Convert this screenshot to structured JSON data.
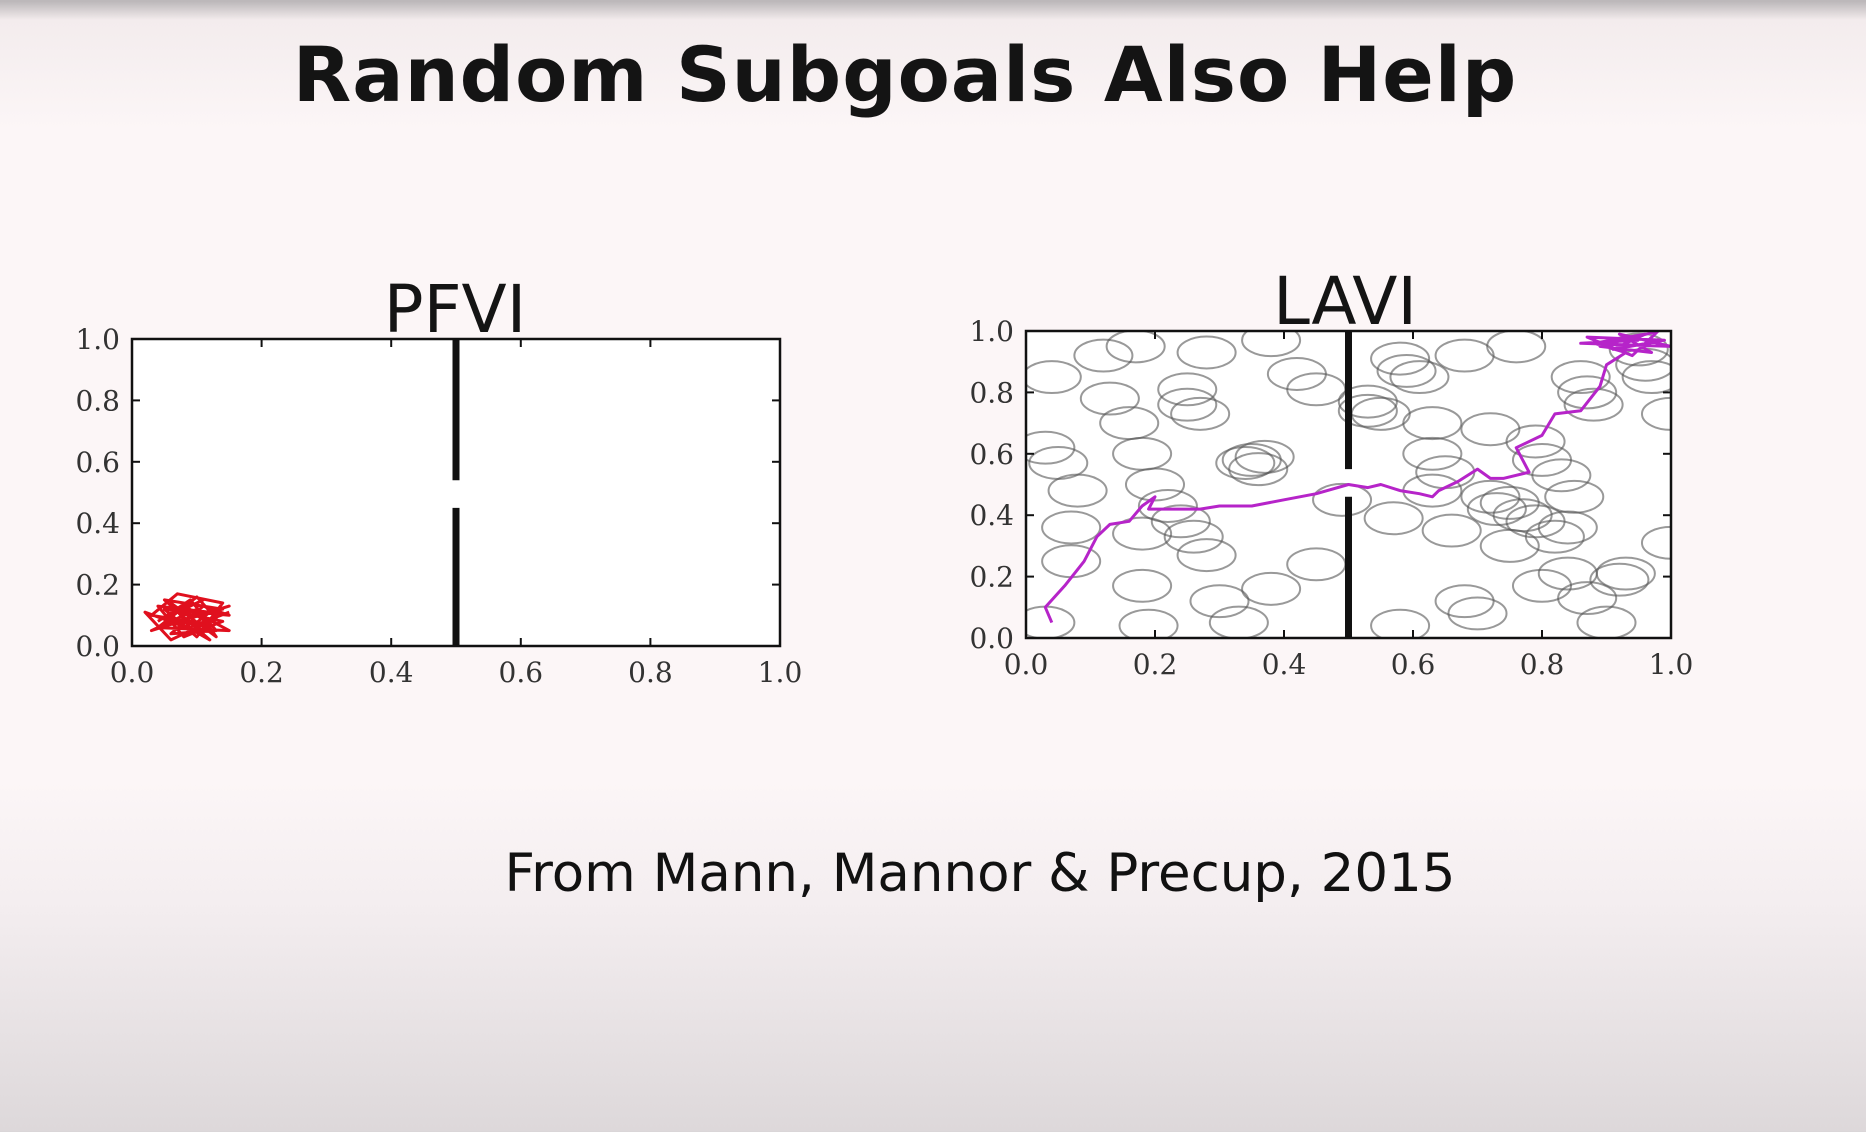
{
  "slide": {
    "title": "Random Subgoals Also Help",
    "citation": "From Mann, Mannor & Precup, 2015"
  },
  "chart_data": [
    {
      "type": "line",
      "title": "PFVI",
      "xlim": [
        0.0,
        1.0
      ],
      "ylim": [
        0.0,
        1.0
      ],
      "x_ticks": [
        "0.0",
        "0.2",
        "0.4",
        "0.6",
        "0.8",
        "1.0"
      ],
      "y_ticks": [
        "0.0",
        "0.2",
        "0.4",
        "0.6",
        "0.8",
        "1.0"
      ],
      "grid": false,
      "walls": [
        {
          "x": 0.5,
          "y_from": 0.0,
          "y_to": 0.45
        },
        {
          "x": 0.5,
          "y_from": 0.54,
          "y_to": 1.0
        }
      ],
      "subgoals": [],
      "trajectory": {
        "color": "#e0101e",
        "points": [
          [
            0.04,
            0.08
          ],
          [
            0.09,
            0.15
          ],
          [
            0.13,
            0.05
          ],
          [
            0.06,
            0.04
          ],
          [
            0.11,
            0.13
          ],
          [
            0.15,
            0.1
          ],
          [
            0.05,
            0.12
          ],
          [
            0.1,
            0.03
          ],
          [
            0.14,
            0.14
          ],
          [
            0.07,
            0.17
          ],
          [
            0.03,
            0.1
          ],
          [
            0.12,
            0.07
          ],
          [
            0.08,
            0.13
          ],
          [
            0.15,
            0.05
          ],
          [
            0.04,
            0.06
          ],
          [
            0.1,
            0.16
          ],
          [
            0.13,
            0.09
          ],
          [
            0.06,
            0.02
          ],
          [
            0.02,
            0.11
          ],
          [
            0.11,
            0.04
          ],
          [
            0.09,
            0.1
          ],
          [
            0.14,
            0.12
          ],
          [
            0.05,
            0.15
          ],
          [
            0.12,
            0.02
          ],
          [
            0.07,
            0.08
          ],
          [
            0.15,
            0.13
          ],
          [
            0.03,
            0.05
          ],
          [
            0.1,
            0.12
          ],
          [
            0.13,
            0.03
          ],
          [
            0.06,
            0.14
          ],
          [
            0.09,
            0.06
          ],
          [
            0.12,
            0.11
          ],
          [
            0.04,
            0.13
          ],
          [
            0.08,
            0.03
          ],
          [
            0.14,
            0.08
          ],
          [
            0.07,
            0.11
          ],
          [
            0.11,
            0.15
          ],
          [
            0.05,
            0.09
          ],
          [
            0.1,
            0.07
          ],
          [
            0.15,
            0.11
          ]
        ]
      }
    },
    {
      "type": "line",
      "title": "LAVI",
      "xlim": [
        0.0,
        1.0
      ],
      "ylim": [
        0.0,
        1.0
      ],
      "x_ticks": [
        "0.0",
        "0.2",
        "0.4",
        "0.6",
        "0.8",
        "1.0"
      ],
      "y_ticks": [
        "0.0",
        "0.2",
        "0.4",
        "0.6",
        "0.8",
        "1.0"
      ],
      "grid": false,
      "walls": [
        {
          "x": 0.5,
          "y_from": 0.0,
          "y_to": 0.46
        },
        {
          "x": 0.5,
          "y_from": 0.55,
          "y_to": 1.0
        }
      ],
      "subgoals": [
        [
          0.03,
          0.05
        ],
        [
          0.03,
          0.62
        ],
        [
          0.04,
          0.85
        ],
        [
          0.05,
          0.57
        ],
        [
          0.07,
          0.36
        ],
        [
          0.07,
          0.25
        ],
        [
          0.08,
          0.48
        ],
        [
          0.12,
          0.92
        ],
        [
          0.13,
          0.78
        ],
        [
          0.16,
          0.7
        ],
        [
          0.18,
          0.6
        ],
        [
          0.18,
          0.34
        ],
        [
          0.18,
          0.17
        ],
        [
          0.19,
          0.04
        ],
        [
          0.17,
          0.95
        ],
        [
          0.2,
          0.5
        ],
        [
          0.22,
          0.43
        ],
        [
          0.24,
          0.38
        ],
        [
          0.25,
          0.76
        ],
        [
          0.25,
          0.81
        ],
        [
          0.26,
          0.33
        ],
        [
          0.27,
          0.73
        ],
        [
          0.28,
          0.27
        ],
        [
          0.28,
          0.93
        ],
        [
          0.3,
          0.12
        ],
        [
          0.33,
          0.05
        ],
        [
          0.34,
          0.57
        ],
        [
          0.35,
          0.58
        ],
        [
          0.36,
          0.55
        ],
        [
          0.37,
          0.59
        ],
        [
          0.38,
          0.97
        ],
        [
          0.38,
          0.16
        ],
        [
          0.42,
          0.86
        ],
        [
          0.45,
          0.81
        ],
        [
          0.45,
          0.24
        ],
        [
          0.49,
          0.45
        ],
        [
          0.53,
          0.77
        ],
        [
          0.53,
          0.74
        ],
        [
          0.55,
          0.73
        ],
        [
          0.57,
          0.39
        ],
        [
          0.58,
          0.91
        ],
        [
          0.59,
          0.87
        ],
        [
          0.58,
          0.04
        ],
        [
          0.61,
          0.85
        ],
        [
          0.63,
          0.7
        ],
        [
          0.63,
          0.6
        ],
        [
          0.63,
          0.48
        ],
        [
          0.65,
          0.54
        ],
        [
          0.66,
          0.35
        ],
        [
          0.68,
          0.12
        ],
        [
          0.68,
          0.92
        ],
        [
          0.7,
          0.08
        ],
        [
          0.72,
          0.68
        ],
        [
          0.72,
          0.46
        ],
        [
          0.73,
          0.42
        ],
        [
          0.75,
          0.3
        ],
        [
          0.75,
          0.44
        ],
        [
          0.76,
          0.95
        ],
        [
          0.77,
          0.4
        ],
        [
          0.79,
          0.38
        ],
        [
          0.79,
          0.64
        ],
        [
          0.8,
          0.58
        ],
        [
          0.8,
          0.17
        ],
        [
          0.82,
          0.33
        ],
        [
          0.83,
          0.53
        ],
        [
          0.84,
          0.36
        ],
        [
          0.84,
          0.21
        ],
        [
          0.85,
          0.46
        ],
        [
          0.86,
          0.85
        ],
        [
          0.87,
          0.8
        ],
        [
          0.87,
          0.13
        ],
        [
          0.88,
          0.76
        ],
        [
          0.9,
          0.05
        ],
        [
          0.92,
          0.19
        ],
        [
          0.93,
          0.21
        ],
        [
          0.95,
          0.94
        ],
        [
          0.96,
          0.89
        ],
        [
          0.97,
          0.85
        ],
        [
          1.0,
          0.31
        ],
        [
          1.0,
          0.73
        ]
      ],
      "trajectory": {
        "color": "#b624c9",
        "points": [
          [
            0.04,
            0.05
          ],
          [
            0.03,
            0.1
          ],
          [
            0.06,
            0.17
          ],
          [
            0.09,
            0.25
          ],
          [
            0.11,
            0.33
          ],
          [
            0.13,
            0.37
          ],
          [
            0.16,
            0.38
          ],
          [
            0.18,
            0.43
          ],
          [
            0.2,
            0.46
          ],
          [
            0.19,
            0.42
          ],
          [
            0.22,
            0.42
          ],
          [
            0.27,
            0.42
          ],
          [
            0.3,
            0.43
          ],
          [
            0.35,
            0.43
          ],
          [
            0.4,
            0.45
          ],
          [
            0.45,
            0.47
          ],
          [
            0.5,
            0.5
          ],
          [
            0.53,
            0.49
          ],
          [
            0.55,
            0.5
          ],
          [
            0.58,
            0.48
          ],
          [
            0.61,
            0.47
          ],
          [
            0.63,
            0.46
          ],
          [
            0.64,
            0.48
          ],
          [
            0.67,
            0.51
          ],
          [
            0.7,
            0.55
          ],
          [
            0.72,
            0.52
          ],
          [
            0.74,
            0.52
          ],
          [
            0.78,
            0.54
          ],
          [
            0.76,
            0.62
          ],
          [
            0.8,
            0.66
          ],
          [
            0.82,
            0.73
          ],
          [
            0.86,
            0.74
          ],
          [
            0.89,
            0.82
          ],
          [
            0.9,
            0.89
          ],
          [
            0.93,
            0.93
          ],
          [
            0.88,
            0.96
          ],
          [
            0.96,
            0.99
          ],
          [
            0.91,
            0.94
          ],
          [
            0.99,
            0.97
          ],
          [
            0.87,
            0.98
          ],
          [
            0.94,
            0.92
          ],
          [
            0.98,
            1.0
          ],
          [
            0.89,
            0.95
          ],
          [
            0.97,
            0.93
          ],
          [
            0.92,
            0.99
          ],
          [
            1.0,
            0.95
          ],
          [
            0.86,
            0.96
          ],
          [
            0.95,
            0.97
          ]
        ]
      }
    }
  ]
}
